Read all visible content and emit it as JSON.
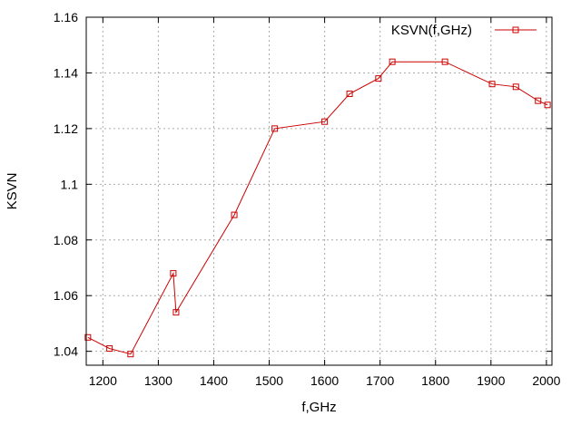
{
  "chart_data": {
    "type": "line",
    "xlabel": "f,GHz",
    "ylabel": "KSVN",
    "xlim": [
      1170,
      2010
    ],
    "ylim": [
      1.035,
      1.16
    ],
    "xticks": [
      1200,
      1300,
      1400,
      1500,
      1600,
      1700,
      1800,
      1900,
      2000
    ],
    "yticks": [
      1.04,
      1.06,
      1.08,
      1.1,
      1.12,
      1.14,
      1.16
    ],
    "xtick_labels": [
      "1200",
      "1300",
      "1400",
      "1500",
      "1600",
      "1700",
      "1800",
      "1900",
      "2000"
    ],
    "ytick_labels": [
      "1.04",
      "1.06",
      "1.08",
      "1.1",
      "1.12",
      "1.14",
      "1.16"
    ],
    "grid": true,
    "legend_position": "top-right",
    "series": [
      {
        "name": "KSVN(f,GHz)",
        "color": "#cc0000",
        "marker": "square",
        "x": [
          1173,
          1212,
          1250,
          1327,
          1332,
          1437,
          1510,
          1600,
          1645,
          1697,
          1722,
          1817,
          1902,
          1945,
          1985,
          2002
        ],
        "y": [
          1.045,
          1.041,
          1.039,
          1.068,
          1.054,
          1.089,
          1.12,
          1.1225,
          1.1325,
          1.138,
          1.144,
          1.144,
          1.136,
          1.135,
          1.13,
          1.1285
        ]
      }
    ]
  }
}
